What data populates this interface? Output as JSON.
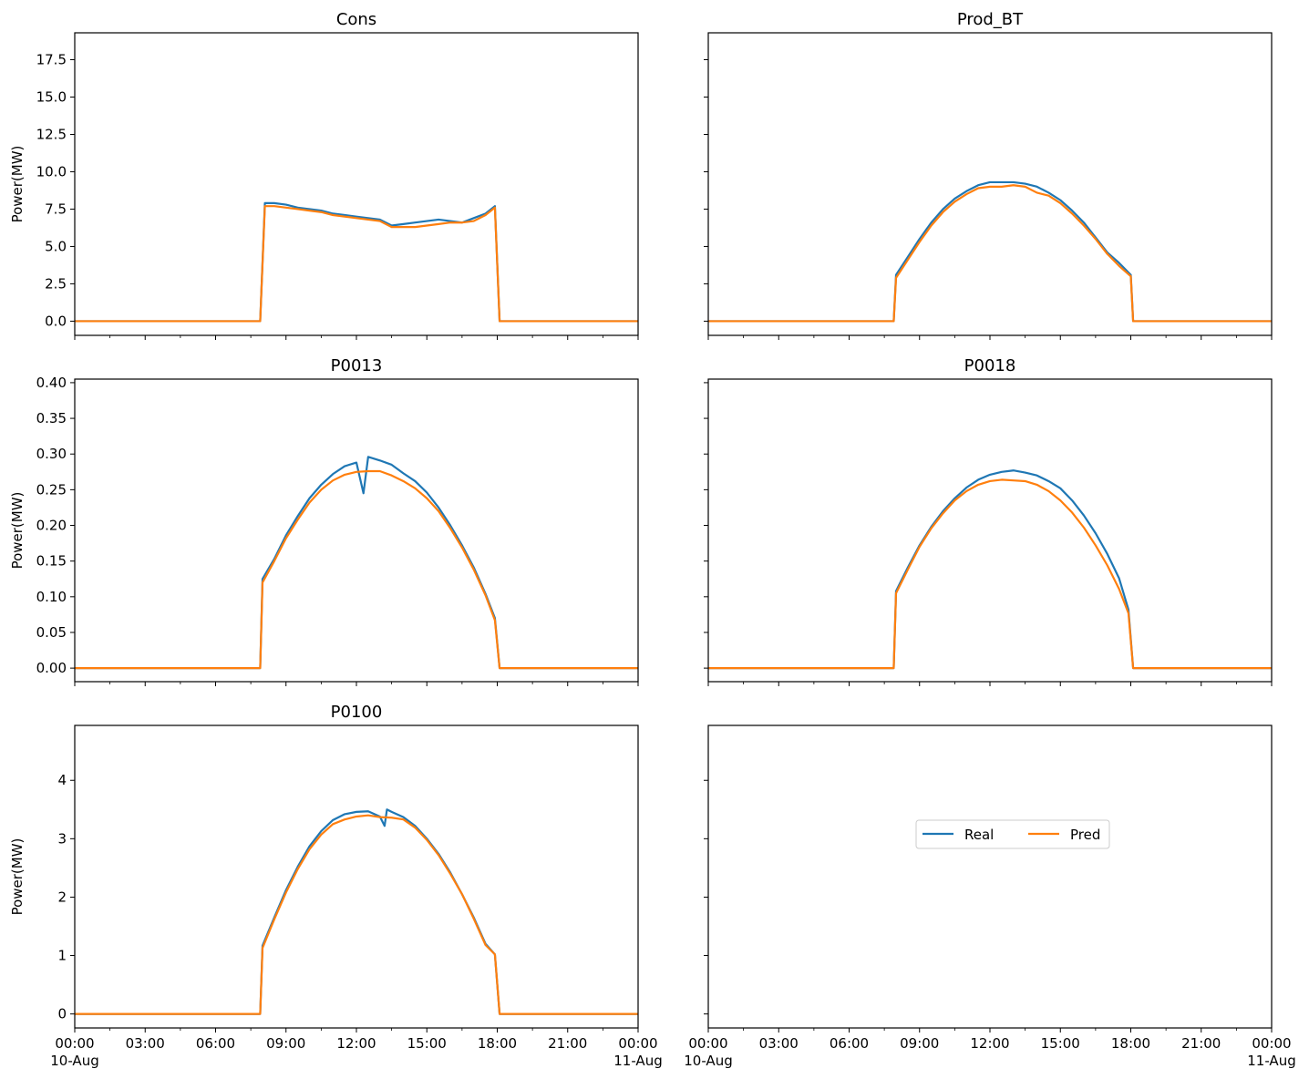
{
  "x_ticks": [
    "00:00",
    "03:00",
    "06:00",
    "09:00",
    "12:00",
    "15:00",
    "18:00",
    "21:00",
    "00:00"
  ],
  "x_date_start": "10-Aug",
  "x_date_end": "11-Aug",
  "legend": [
    {
      "label": "Real",
      "color": "#1f77b4"
    },
    {
      "label": "Pred",
      "color": "#ff7f0e"
    }
  ],
  "chart_data": [
    {
      "type": "line",
      "title": "Cons",
      "ylabel": "Power(MW)",
      "xlim": [
        0,
        24
      ],
      "ylim": [
        -0.95,
        19.3
      ],
      "yticks": [
        "0.0",
        "2.5",
        "5.0",
        "7.5",
        "10.0",
        "12.5",
        "15.0",
        "17.5"
      ],
      "ytick_values": [
        0,
        2.5,
        5,
        7.5,
        10,
        12.5,
        15,
        17.5
      ],
      "series": [
        {
          "name": "Real",
          "color": "#1f77b4",
          "x": [
            0,
            7.9,
            8.1,
            8.5,
            9.0,
            9.5,
            10.0,
            10.5,
            11.0,
            11.5,
            12.0,
            12.5,
            13.0,
            13.5,
            14.0,
            14.5,
            15.0,
            15.5,
            16.0,
            16.5,
            17.0,
            17.5,
            17.9,
            18.1,
            24
          ],
          "y": [
            0,
            0,
            7.9,
            7.9,
            7.8,
            7.6,
            7.5,
            7.4,
            7.2,
            7.1,
            7.0,
            6.9,
            6.8,
            6.4,
            6.5,
            6.6,
            6.7,
            6.8,
            6.7,
            6.6,
            6.9,
            7.2,
            7.7,
            0,
            0
          ]
        },
        {
          "name": "Pred",
          "color": "#ff7f0e",
          "x": [
            0,
            7.9,
            8.1,
            8.5,
            9.0,
            9.5,
            10.0,
            10.5,
            11.0,
            11.5,
            12.0,
            12.5,
            13.0,
            13.5,
            14.0,
            14.5,
            15.0,
            15.5,
            16.0,
            16.5,
            17.0,
            17.5,
            17.9,
            18.1,
            24
          ],
          "y": [
            0,
            0,
            7.7,
            7.7,
            7.6,
            7.5,
            7.4,
            7.3,
            7.1,
            7.0,
            6.9,
            6.8,
            6.7,
            6.3,
            6.3,
            6.3,
            6.4,
            6.5,
            6.6,
            6.6,
            6.7,
            7.1,
            7.6,
            0,
            0
          ]
        }
      ]
    },
    {
      "type": "line",
      "title": "Prod_BT",
      "ylabel": "",
      "xlim": [
        0,
        24
      ],
      "ylim": [
        -0.95,
        19.3
      ],
      "yticks": [
        "",
        "",
        "",
        "",
        "",
        "",
        "",
        ""
      ],
      "ytick_values": [
        0,
        2.5,
        5,
        7.5,
        10,
        12.5,
        15,
        17.5
      ],
      "series": [
        {
          "name": "Real",
          "color": "#1f77b4",
          "x": [
            0,
            7.9,
            8.0,
            8.5,
            9.0,
            9.5,
            10.0,
            10.5,
            11.0,
            11.5,
            12.0,
            12.5,
            13.0,
            13.5,
            14.0,
            14.5,
            15.0,
            15.5,
            16.0,
            16.5,
            17.0,
            17.5,
            18.0,
            18.1,
            24
          ],
          "y": [
            0,
            0,
            3.1,
            4.3,
            5.5,
            6.6,
            7.5,
            8.2,
            8.7,
            9.1,
            9.3,
            9.3,
            9.3,
            9.2,
            9.0,
            8.6,
            8.1,
            7.4,
            6.6,
            5.6,
            4.6,
            3.9,
            3.1,
            0,
            0
          ]
        },
        {
          "name": "Pred",
          "color": "#ff7f0e",
          "x": [
            0,
            7.9,
            8.0,
            8.5,
            9.0,
            9.5,
            10.0,
            10.5,
            11.0,
            11.5,
            12.0,
            12.5,
            13.0,
            13.5,
            14.0,
            14.5,
            15.0,
            15.5,
            16.0,
            16.5,
            17.0,
            17.5,
            18.0,
            18.1,
            24
          ],
          "y": [
            0,
            0,
            2.9,
            4.1,
            5.3,
            6.4,
            7.3,
            8.0,
            8.5,
            8.9,
            9.0,
            9.0,
            9.1,
            9.0,
            8.6,
            8.4,
            7.9,
            7.2,
            6.4,
            5.5,
            4.5,
            3.7,
            3.0,
            0,
            0
          ]
        }
      ]
    },
    {
      "type": "line",
      "title": "P0013",
      "ylabel": "Power(MW)",
      "xlim": [
        0,
        24
      ],
      "ylim": [
        -0.019,
        0.405
      ],
      "yticks": [
        "0.00",
        "0.05",
        "0.10",
        "0.15",
        "0.20",
        "0.25",
        "0.30",
        "0.35",
        "0.40"
      ],
      "ytick_values": [
        0,
        0.05,
        0.1,
        0.15,
        0.2,
        0.25,
        0.3,
        0.35,
        0.4
      ],
      "series": [
        {
          "name": "Real",
          "color": "#1f77b4",
          "x": [
            0,
            7.9,
            8.0,
            8.5,
            9.0,
            9.5,
            10.0,
            10.5,
            11.0,
            11.5,
            12.0,
            12.3,
            12.5,
            13.0,
            13.5,
            14.0,
            14.5,
            15.0,
            15.5,
            16.0,
            16.5,
            17.0,
            17.5,
            17.9,
            18.1,
            24
          ],
          "y": [
            0,
            0,
            0.125,
            0.153,
            0.186,
            0.213,
            0.238,
            0.257,
            0.272,
            0.283,
            0.288,
            0.245,
            0.296,
            0.291,
            0.285,
            0.273,
            0.262,
            0.246,
            0.225,
            0.2,
            0.172,
            0.141,
            0.104,
            0.07,
            0,
            0
          ]
        },
        {
          "name": "Pred",
          "color": "#ff7f0e",
          "x": [
            0,
            7.9,
            8.0,
            8.5,
            9.0,
            9.5,
            10.0,
            10.5,
            11.0,
            11.5,
            12.0,
            12.5,
            13.0,
            13.5,
            14.0,
            14.5,
            15.0,
            15.5,
            16.0,
            16.5,
            17.0,
            17.5,
            17.9,
            18.1,
            24
          ],
          "y": [
            0,
            0,
            0.12,
            0.15,
            0.182,
            0.208,
            0.232,
            0.25,
            0.263,
            0.271,
            0.275,
            0.276,
            0.276,
            0.27,
            0.262,
            0.252,
            0.238,
            0.22,
            0.196,
            0.169,
            0.138,
            0.102,
            0.067,
            0,
            0
          ]
        }
      ]
    },
    {
      "type": "line",
      "title": "P0018",
      "ylabel": "",
      "xlim": [
        0,
        24
      ],
      "ylim": [
        -0.019,
        0.405
      ],
      "yticks": [
        "",
        "",
        "",
        "",
        "",
        "",
        "",
        "",
        ""
      ],
      "ytick_values": [
        0,
        0.05,
        0.1,
        0.15,
        0.2,
        0.25,
        0.3,
        0.35,
        0.4
      ],
      "series": [
        {
          "name": "Real",
          "color": "#1f77b4",
          "x": [
            0,
            7.9,
            8.0,
            8.5,
            9.0,
            9.5,
            10.0,
            10.5,
            11.0,
            11.5,
            12.0,
            12.5,
            13.0,
            13.5,
            14.0,
            14.5,
            15.0,
            15.5,
            16.0,
            16.5,
            17.0,
            17.5,
            17.9,
            18.1,
            24
          ],
          "y": [
            0,
            0,
            0.108,
            0.141,
            0.172,
            0.198,
            0.22,
            0.238,
            0.253,
            0.264,
            0.271,
            0.275,
            0.277,
            0.274,
            0.27,
            0.262,
            0.252,
            0.235,
            0.214,
            0.189,
            0.16,
            0.126,
            0.082,
            0,
            0
          ]
        },
        {
          "name": "Pred",
          "color": "#ff7f0e",
          "x": [
            0,
            7.9,
            8.0,
            8.5,
            9.0,
            9.5,
            10.0,
            10.5,
            11.0,
            11.5,
            12.0,
            12.5,
            13.0,
            13.5,
            14.0,
            14.5,
            15.0,
            15.5,
            16.0,
            16.5,
            17.0,
            17.5,
            17.9,
            18.1,
            24
          ],
          "y": [
            0,
            0,
            0.105,
            0.138,
            0.17,
            0.196,
            0.217,
            0.235,
            0.248,
            0.257,
            0.262,
            0.264,
            0.263,
            0.262,
            0.257,
            0.248,
            0.235,
            0.218,
            0.197,
            0.172,
            0.144,
            0.111,
            0.077,
            0,
            0
          ]
        }
      ]
    },
    {
      "type": "line",
      "title": "P0100",
      "ylabel": "Power(MW)",
      "xlim": [
        0,
        24
      ],
      "ylim": [
        -0.24,
        4.94
      ],
      "yticks": [
        "0",
        "1",
        "2",
        "3",
        "4"
      ],
      "ytick_values": [
        0,
        1,
        2,
        3,
        4
      ],
      "series": [
        {
          "name": "Real",
          "color": "#1f77b4",
          "x": [
            0,
            7.9,
            8.0,
            8.5,
            9.0,
            9.5,
            10.0,
            10.5,
            11.0,
            11.5,
            12.0,
            12.5,
            13.0,
            13.2,
            13.3,
            13.5,
            14.0,
            14.5,
            15.0,
            15.5,
            16.0,
            16.5,
            17.0,
            17.5,
            17.9,
            18.1,
            24
          ],
          "y": [
            0,
            0,
            1.17,
            1.65,
            2.12,
            2.52,
            2.87,
            3.13,
            3.32,
            3.42,
            3.46,
            3.47,
            3.38,
            3.22,
            3.5,
            3.46,
            3.37,
            3.22,
            3.0,
            2.74,
            2.42,
            2.05,
            1.65,
            1.2,
            1.02,
            0,
            0
          ]
        },
        {
          "name": "Pred",
          "color": "#ff7f0e",
          "x": [
            0,
            7.9,
            8.0,
            8.5,
            9.0,
            9.5,
            10.0,
            10.5,
            11.0,
            11.5,
            12.0,
            12.5,
            13.0,
            13.5,
            14.0,
            14.5,
            15.0,
            15.5,
            16.0,
            16.5,
            17.0,
            17.5,
            17.9,
            18.1,
            24
          ],
          "y": [
            0,
            0,
            1.13,
            1.62,
            2.08,
            2.48,
            2.82,
            3.07,
            3.25,
            3.33,
            3.38,
            3.4,
            3.37,
            3.36,
            3.33,
            3.19,
            2.98,
            2.72,
            2.4,
            2.05,
            1.63,
            1.18,
            1.02,
            0,
            0
          ]
        }
      ]
    }
  ]
}
